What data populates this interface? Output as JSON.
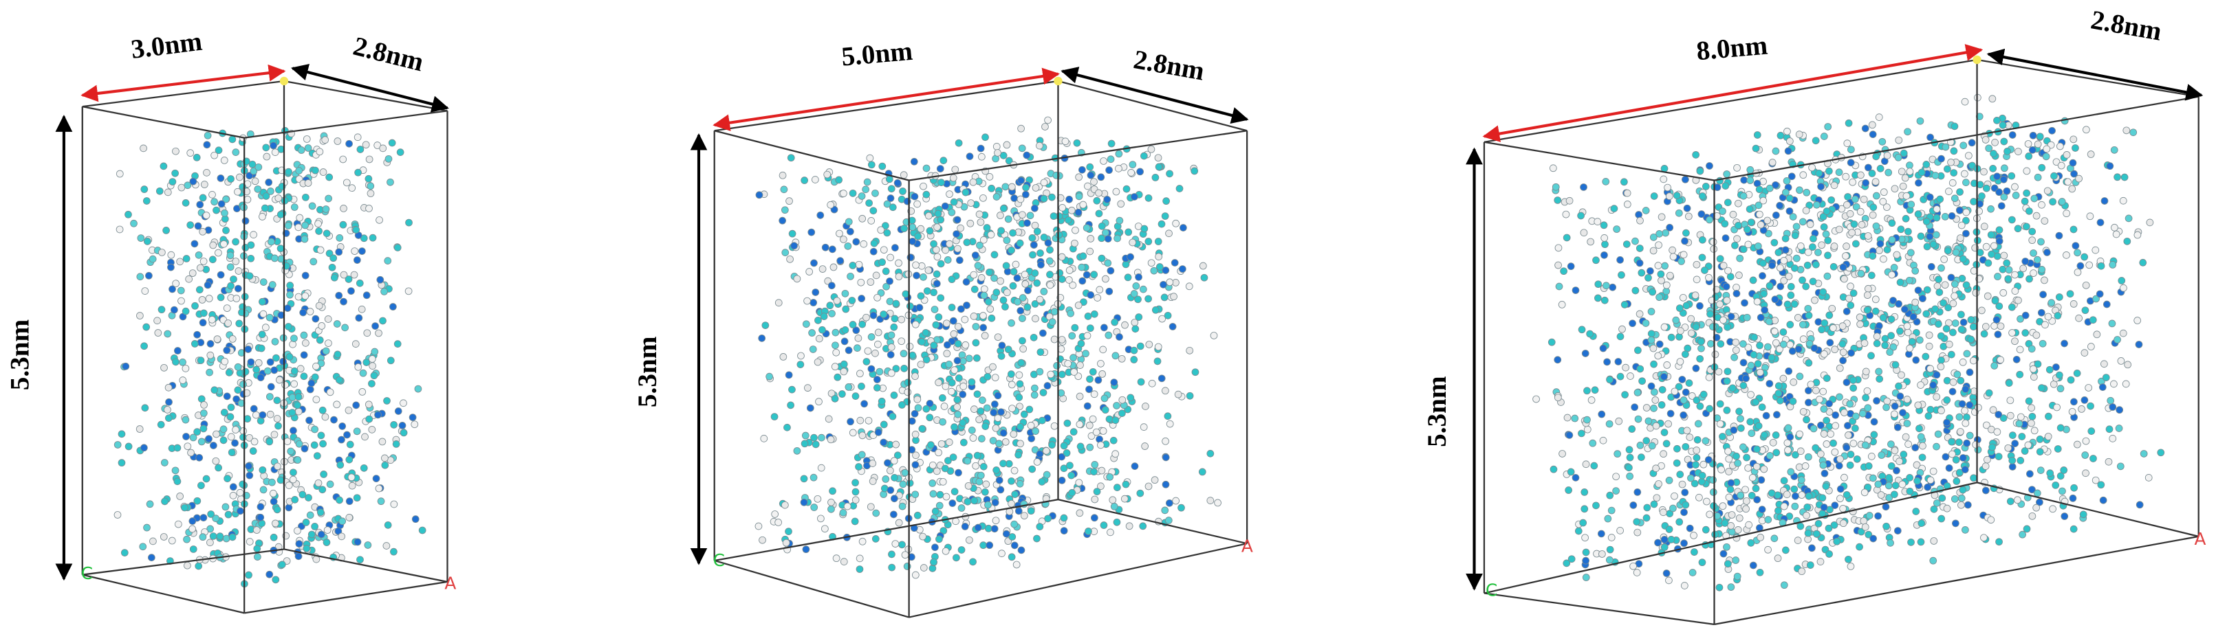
{
  "panels": [
    {
      "width_label": "3.0nm",
      "depth_label": "2.8nm",
      "height_label": "5.3nm",
      "axis_labels": [
        "C",
        "A"
      ]
    },
    {
      "width_label": "5.0nm",
      "depth_label": "2.8nm",
      "height_label": "5.3nm",
      "axis_labels": [
        "C",
        "A"
      ]
    },
    {
      "width_label": "8.0nm",
      "depth_label": "2.8nm",
      "height_label": "5.3nm",
      "axis_labels": [
        "C",
        "A"
      ]
    }
  ]
}
